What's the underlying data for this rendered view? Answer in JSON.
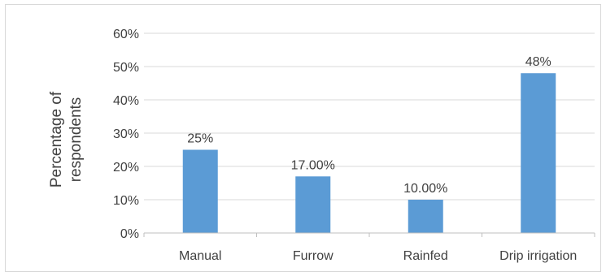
{
  "chart_data": {
    "type": "bar",
    "title": "",
    "xlabel": "",
    "ylabel": "Percentage of respondents",
    "ylabel_lines": [
      "Percentage of",
      "respondents"
    ],
    "categories": [
      "Manual",
      "Furrow",
      "Rainfed",
      "Drip irrigation"
    ],
    "values": [
      25,
      17,
      10,
      48
    ],
    "data_labels": [
      "25%",
      "17.00%",
      "10.00%",
      "48%"
    ],
    "ylim": [
      0,
      60
    ],
    "yticks": [
      0,
      10,
      20,
      30,
      40,
      50,
      60
    ],
    "ytick_labels": [
      "0%",
      "10%",
      "20%",
      "30%",
      "40%",
      "50%",
      "60%"
    ],
    "grid": true,
    "legend": "none",
    "colors": {
      "bar": "#5b9bd5",
      "grid": "#d9d9d9",
      "text": "#404040"
    }
  }
}
